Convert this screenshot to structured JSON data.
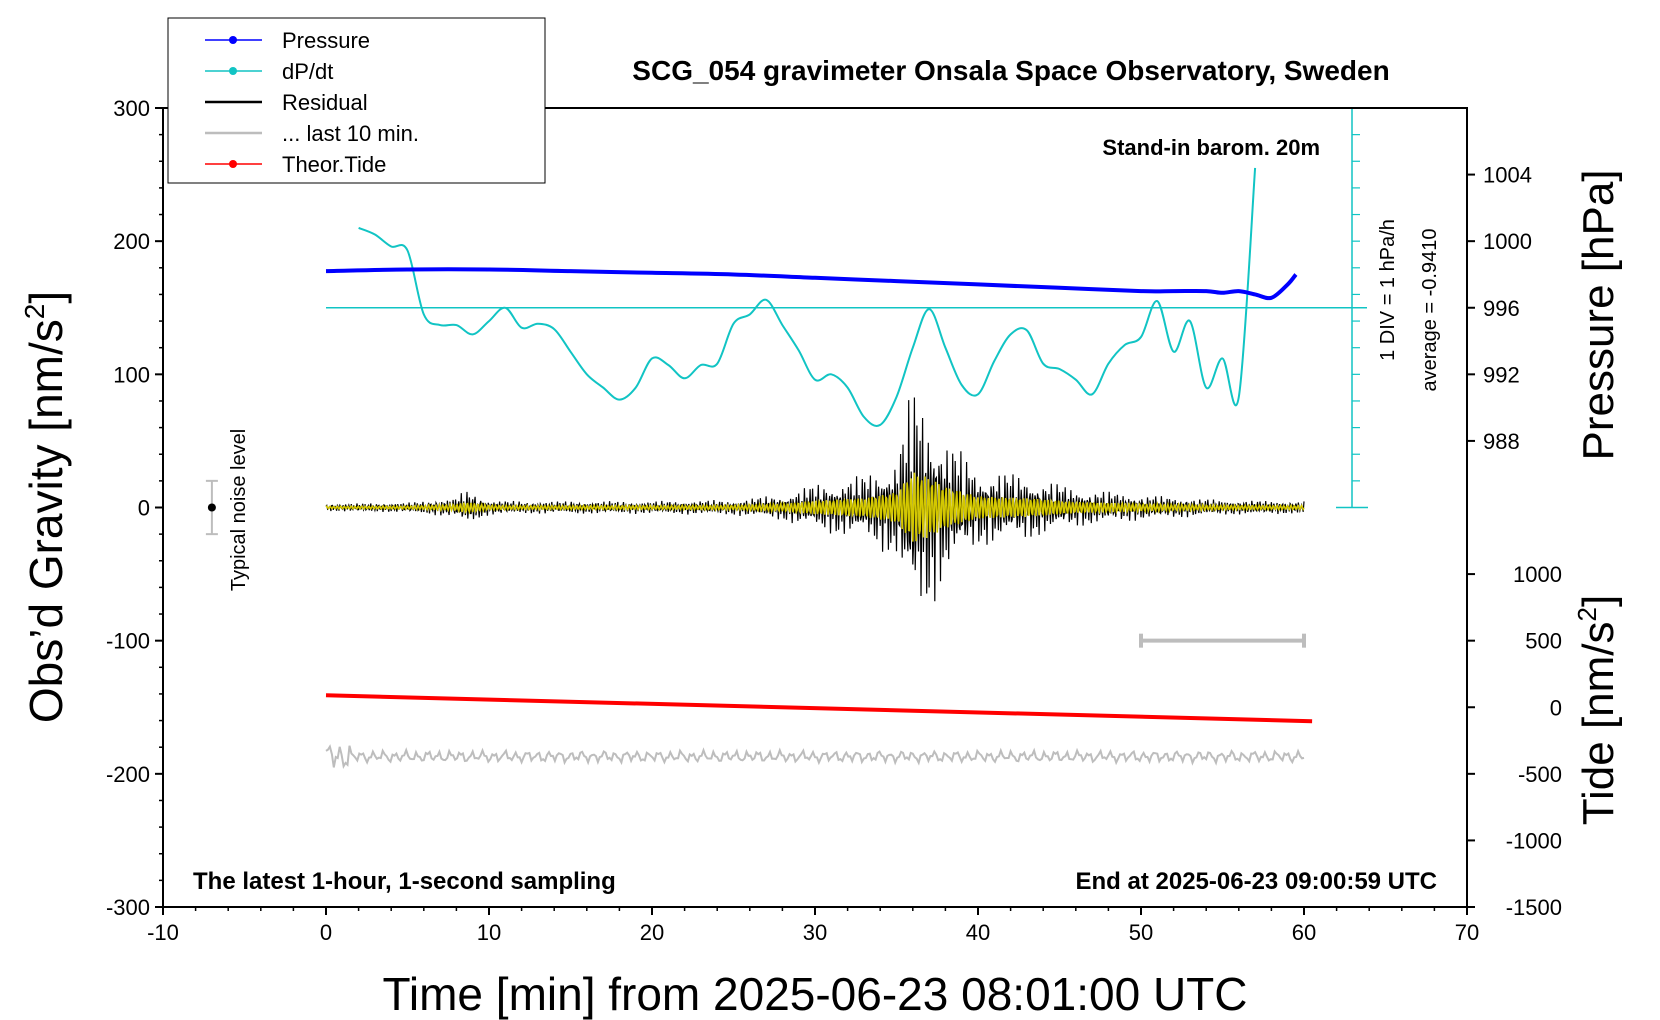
{
  "title": "SCG_054 gravimeter Onsala Space Observatory, Sweden",
  "corner_labels": {
    "barometer": "Stand-in barom. 20m",
    "bottom_left": "The latest 1-hour, 1-second sampling",
    "bottom_right": "End at 2025-06-23 09:00:59 UTC"
  },
  "scale_bar": {
    "div_label": "1 DIV = 1 hPa/h",
    "average_label": "average = -0.9410"
  },
  "noise_label": "Typical noise level",
  "legend": [
    {
      "label": "Pressure",
      "color": "#0000ff",
      "marker": "dot"
    },
    {
      "label": "dP/dt",
      "color": "#11c4c4",
      "marker": "dot"
    },
    {
      "label": "Residual",
      "color": "#000000",
      "marker": "line"
    },
    {
      "label": "... last 10 min.",
      "color": "#bdbdbd",
      "marker": "line"
    },
    {
      "label": "Theor.Tide",
      "color": "#ff0000",
      "marker": "dot"
    }
  ],
  "colors": {
    "pressure": "#0000ff",
    "dpdt": "#11c4c4",
    "residual": "#000000",
    "residual_smooth": "#d4c800",
    "last10": "#bdbdbd",
    "tide": "#ff0000",
    "scalebar": "#11c4c4"
  },
  "chart_data": {
    "type": "line",
    "title": "SCG_054 gravimeter Onsala Space Observatory, Sweden",
    "xlabel": "Time [min] from 2025-06-23 08:01:00 UTC",
    "xlim": [
      -10,
      70
    ],
    "xticks": [
      -10,
      0,
      10,
      20,
      30,
      40,
      50,
      60,
      70
    ],
    "y_left": {
      "label": "Obs'd Gravity [nm/s²]",
      "label_main": "Obs’d Gravity [nm/s",
      "label_sup": "2",
      "label_end": "]",
      "lim": [
        -300,
        300
      ],
      "ticks": [
        -300,
        -200,
        -100,
        0,
        100,
        200,
        300
      ]
    },
    "y_right_pressure": {
      "label": "Pressure [hPa]",
      "ticks": [
        988,
        992,
        996,
        1000,
        1004
      ],
      "ref": {
        "hpa": 996,
        "gravity": 150
      },
      "gravity_per_hpa": 12.5
    },
    "y_right_tide": {
      "label": "Tide [nm/s²]",
      "label_main": "Tide [nm/s",
      "label_sup": "2",
      "label_end": "]",
      "ticks": [
        1000,
        500,
        0,
        -500,
        -1000,
        -1500
      ],
      "ref": {
        "tide": 0,
        "gravity": -150
      },
      "gravity_per_unit": 0.1
    },
    "series": [
      {
        "name": "Pressure",
        "axis": "pressure_hpa",
        "x": [
          0,
          5,
          10,
          15,
          20,
          25,
          30,
          35,
          40,
          45,
          50,
          52,
          54,
          55,
          56,
          57,
          58,
          59,
          59.5
        ],
        "y": [
          998.2,
          998.3,
          998.3,
          998.2,
          998.1,
          998.0,
          997.8,
          997.6,
          997.4,
          997.2,
          997.0,
          997.0,
          997.0,
          996.9,
          997.0,
          996.8,
          996.6,
          997.4,
          998.0
        ]
      },
      {
        "name": "dP/dt",
        "axis": "gravity",
        "x": [
          2,
          3,
          4,
          5,
          6,
          7,
          8,
          9,
          10,
          11,
          12,
          13,
          14,
          15,
          16,
          17,
          18,
          19,
          20,
          21,
          22,
          23,
          24,
          25,
          26,
          27,
          28,
          29,
          30,
          31,
          32,
          33,
          34,
          35,
          36,
          37,
          38,
          39,
          40,
          41,
          42,
          43,
          44,
          45,
          46,
          47,
          48,
          49,
          50,
          51,
          52,
          53,
          54,
          55,
          56,
          57
        ],
        "y": [
          210,
          205,
          196,
          193,
          145,
          137,
          137,
          130,
          140,
          150,
          135,
          138,
          134,
          117,
          100,
          90,
          81,
          90,
          112,
          107,
          97,
          107,
          108,
          138,
          145,
          156,
          137,
          118,
          96,
          100,
          90,
          68,
          62,
          83,
          120,
          149,
          120,
          92,
          85,
          110,
          130,
          133,
          108,
          104,
          96,
          85,
          108,
          122,
          128,
          155,
          117,
          140,
          90,
          112,
          83,
          255
        ]
      },
      {
        "name": "Residual",
        "axis": "gravity",
        "x_range": [
          0,
          60
        ],
        "envelope_x": [
          0,
          5,
          8,
          8.5,
          9,
          10,
          12,
          20,
          25,
          28,
          30,
          33,
          35,
          36,
          37,
          38,
          40,
          43,
          46,
          50,
          55,
          60
        ],
        "envelope_amp": [
          3,
          4,
          8,
          14,
          12,
          6,
          5,
          5,
          6,
          10,
          18,
          25,
          40,
          95,
          80,
          55,
          30,
          25,
          15,
          10,
          6,
          5
        ]
      },
      {
        "name": "... last 10 min.",
        "axis": "gravity",
        "x_range": [
          0,
          60
        ],
        "baseline": -187,
        "amplitude": 5
      },
      {
        "name": "Theor.Tide",
        "axis": "tide",
        "x": [
          0,
          60.5
        ],
        "y": [
          90,
          -105
        ]
      }
    ],
    "noise_level": {
      "x": -7,
      "center": 0,
      "half_range": 20
    },
    "gray_bar": {
      "x": [
        50,
        60
      ],
      "y": -100
    },
    "dpdt_baseline": 150
  }
}
